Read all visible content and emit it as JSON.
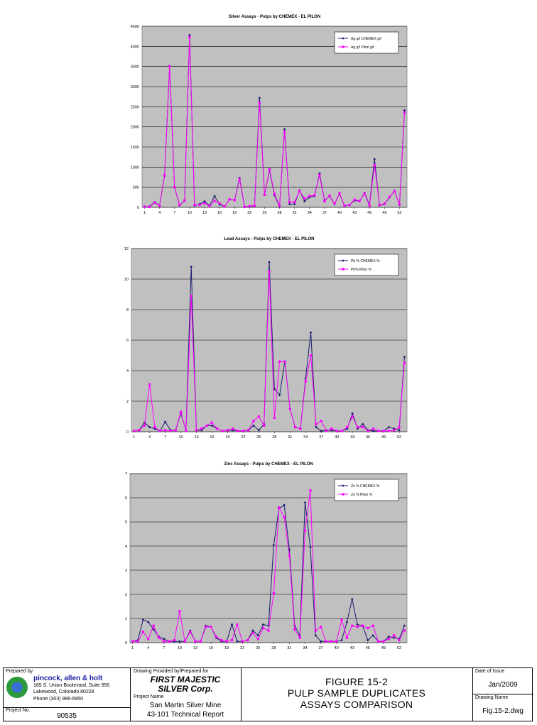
{
  "colors": {
    "chemex": "#1a1a6e",
    "pilon": "#ff00ff",
    "plot_bg": "#c0c0c0",
    "grid": "#000000"
  },
  "chart_data": [
    {
      "type": "line",
      "title": "Silver Assays - Pulps by CHEMEX - EL PILON",
      "xlabel": "",
      "ylabel": "",
      "ylim": [
        0,
        4500
      ],
      "yticks": [
        "0",
        "500",
        "1000",
        "1500",
        "2000",
        "2500",
        "3000",
        "3500",
        "4000",
        "4500"
      ],
      "xtick_labels": [
        "1",
        "4",
        "7",
        "10",
        "13",
        "16",
        "19",
        "22",
        "25",
        "28",
        "31",
        "34",
        "37",
        "40",
        "43",
        "46",
        "49",
        "52"
      ],
      "legend_position": "top-right",
      "x": [
        1,
        2,
        3,
        4,
        5,
        6,
        7,
        8,
        9,
        10,
        11,
        12,
        13,
        14,
        15,
        16,
        17,
        18,
        19,
        20,
        21,
        22,
        23,
        24,
        25,
        26,
        27,
        28,
        29,
        30,
        31,
        32,
        33,
        34,
        35,
        36,
        37,
        38,
        39,
        40,
        41,
        42,
        43,
        44,
        45,
        46,
        47,
        48,
        49,
        50,
        51,
        52,
        53
      ],
      "series": [
        {
          "name": "Ag g/t CHEMEX g/t",
          "values": [
            10,
            20,
            130,
            50,
            780,
            3510,
            500,
            50,
            170,
            4280,
            40,
            80,
            150,
            40,
            280,
            70,
            20,
            200,
            180,
            730,
            20,
            20,
            30,
            2720,
            310,
            920,
            300,
            20,
            1940,
            80,
            80,
            420,
            150,
            250,
            280,
            840,
            170,
            280,
            80,
            340,
            30,
            60,
            170,
            150,
            360,
            60,
            1200,
            50,
            80,
            250,
            410,
            60,
            2410
          ]
        },
        {
          "name": "Ag g/t Pilon g/t",
          "values": [
            20,
            10,
            120,
            40,
            800,
            3510,
            500,
            60,
            170,
            4230,
            60,
            60,
            100,
            30,
            160,
            100,
            20,
            200,
            180,
            700,
            10,
            30,
            40,
            2600,
            310,
            950,
            330,
            40,
            1870,
            130,
            130,
            400,
            220,
            280,
            300,
            800,
            150,
            290,
            90,
            350,
            40,
            60,
            190,
            160,
            340,
            40,
            1050,
            60,
            90,
            260,
            400,
            70,
            2360
          ]
        }
      ]
    },
    {
      "type": "line",
      "title": "Lead Assays - Pulps by CHEMEX - EL PILON",
      "xlabel": "",
      "ylabel": "",
      "ylim": [
        0,
        12
      ],
      "yticks": [
        "0",
        "2",
        "4",
        "6",
        "8",
        "10",
        "12"
      ],
      "xtick_labels": [
        "1",
        "4",
        "7",
        "10",
        "13",
        "16",
        "19",
        "22",
        "25",
        "28",
        "31",
        "34",
        "37",
        "40",
        "43",
        "46",
        "49",
        "52"
      ],
      "legend_position": "top-right",
      "x": [
        1,
        2,
        3,
        4,
        5,
        6,
        7,
        8,
        9,
        10,
        11,
        12,
        13,
        14,
        15,
        16,
        17,
        18,
        19,
        20,
        21,
        22,
        23,
        24,
        25,
        26,
        27,
        28,
        29,
        30,
        31,
        32,
        33,
        34,
        35,
        36,
        37,
        38,
        39,
        40,
        41,
        42,
        43,
        44,
        45,
        46,
        47,
        48,
        49,
        50,
        51,
        52,
        53
      ],
      "series": [
        {
          "name": "Pb % CHEMEX %",
          "values": [
            0.05,
            0.1,
            0.6,
            0.3,
            0.2,
            0.05,
            0.65,
            0.1,
            0.1,
            1.2,
            0.1,
            10.8,
            0.1,
            0.1,
            0.4,
            0.4,
            0.2,
            0.05,
            0.1,
            0.1,
            0.05,
            0.05,
            0.1,
            0.4,
            0.1,
            0.5,
            11.1,
            2.8,
            2.4,
            4.6,
            1.5,
            0.3,
            0.2,
            3.5,
            6.5,
            0.3,
            0.05,
            0.1,
            0.1,
            0.05,
            0.05,
            0.2,
            1.2,
            0.2,
            0.5,
            0.1,
            0.05,
            0.05,
            0.05,
            0.3,
            0.2,
            0.1,
            4.9
          ]
        },
        {
          "name": "Pb% Pilon %",
          "values": [
            0.05,
            0.1,
            0.4,
            3.1,
            0.3,
            0.05,
            0.1,
            0.05,
            0.1,
            1.3,
            0.05,
            8.9,
            0.1,
            0.2,
            0.4,
            0.6,
            0.2,
            0.05,
            0.1,
            0.2,
            0.05,
            0.05,
            0.1,
            0.7,
            1.0,
            0.4,
            10.5,
            0.9,
            4.6,
            4.6,
            1.5,
            0.3,
            0.2,
            3.3,
            5.0,
            0.5,
            0.7,
            0.05,
            0.2,
            0.05,
            0.05,
            0.3,
            1.0,
            0.3,
            0.3,
            0.05,
            0.2,
            0.05,
            0.05,
            0.05,
            0.1,
            0.3,
            4.5
          ]
        }
      ]
    },
    {
      "type": "line",
      "title": "Zinc Assays - Pulps by CHEMEX - EL PILON",
      "xlabel": "",
      "ylabel": "",
      "ylim": [
        0,
        7
      ],
      "yticks": [
        "0",
        "1",
        "2",
        "3",
        "4",
        "5",
        "6",
        "7"
      ],
      "xtick_labels": [
        "1",
        "4",
        "7",
        "10",
        "13",
        "16",
        "19",
        "22",
        "25",
        "28",
        "31",
        "34",
        "37",
        "40",
        "43",
        "46",
        "49",
        "52"
      ],
      "legend_position": "top-right",
      "x": [
        1,
        2,
        3,
        4,
        5,
        6,
        7,
        8,
        9,
        10,
        11,
        12,
        13,
        14,
        15,
        16,
        17,
        18,
        19,
        20,
        21,
        22,
        23,
        24,
        25,
        26,
        27,
        28,
        29,
        30,
        31,
        32,
        33,
        34,
        35,
        36,
        37,
        38,
        39,
        40,
        41,
        42,
        43,
        44,
        45,
        46,
        47,
        48,
        49,
        50,
        51,
        52,
        53
      ],
      "series": [
        {
          "name": "Zn % CHEMEX %",
          "values": [
            0.05,
            0.1,
            0.95,
            0.85,
            0.55,
            0.25,
            0.15,
            0.05,
            0.05,
            0.05,
            0.05,
            0.5,
            0.05,
            0.05,
            0.7,
            0.65,
            0.2,
            0.05,
            0.05,
            0.75,
            0.05,
            0.05,
            0.1,
            0.5,
            0.3,
            0.75,
            0.7,
            4.05,
            5.55,
            5.7,
            3.85,
            0.7,
            0.3,
            5.8,
            3.95,
            0.3,
            0.05,
            0.05,
            0.05,
            0.05,
            0.1,
            0.85,
            1.8,
            0.75,
            0.7,
            0.1,
            0.3,
            0.05,
            0.05,
            0.25,
            0.2,
            0.15,
            0.7
          ]
        },
        {
          "name": "Zn % Pilon %",
          "values": [
            0.05,
            0.05,
            0.45,
            0.15,
            0.7,
            0.2,
            0.05,
            0.05,
            0.1,
            1.3,
            0.05,
            0.45,
            0.05,
            0.05,
            0.65,
            0.65,
            0.25,
            0.1,
            0.05,
            0.1,
            0.75,
            0.05,
            0.1,
            0.4,
            0.15,
            0.6,
            0.5,
            2.05,
            5.6,
            5.2,
            3.6,
            0.55,
            0.2,
            4.65,
            6.3,
            0.5,
            0.65,
            0.05,
            0.05,
            0.05,
            0.95,
            0.2,
            0.7,
            0.65,
            0.7,
            0.6,
            0.7,
            0.05,
            0.05,
            0.15,
            0.3,
            0.1,
            0.5
          ]
        }
      ]
    }
  ],
  "title_block": {
    "prepared_by_label": "Prepared by",
    "company": "pincock, allen & holt",
    "address1": "165 S. Union Boulevard, Suite 950",
    "address2": "Lakewood, Colorado 80228",
    "phone": "Phone (303) 986-6950",
    "project_no_label": "Project No.",
    "project_no": "90535",
    "drawing_provided_label": "Drawing Provided by/Prepared for",
    "client_line1": "FIRST MAJESTIC",
    "client_line2": "SILVER Corp.",
    "project_name_label": "Project Name",
    "project_name1": "San Martin Silver Mine",
    "project_name2": "43-101 Technical Report",
    "figure_line1": "FIGURE 15-2",
    "figure_line2": "PULP SAMPLE DUPLICATES",
    "figure_line3": "ASSAYS COMPARISON",
    "date_label": "Date of Issue",
    "date": "Jan/2009",
    "drawing_name_label": "Drawing Name",
    "drawing_name": "Fig.15-2.dwg"
  }
}
